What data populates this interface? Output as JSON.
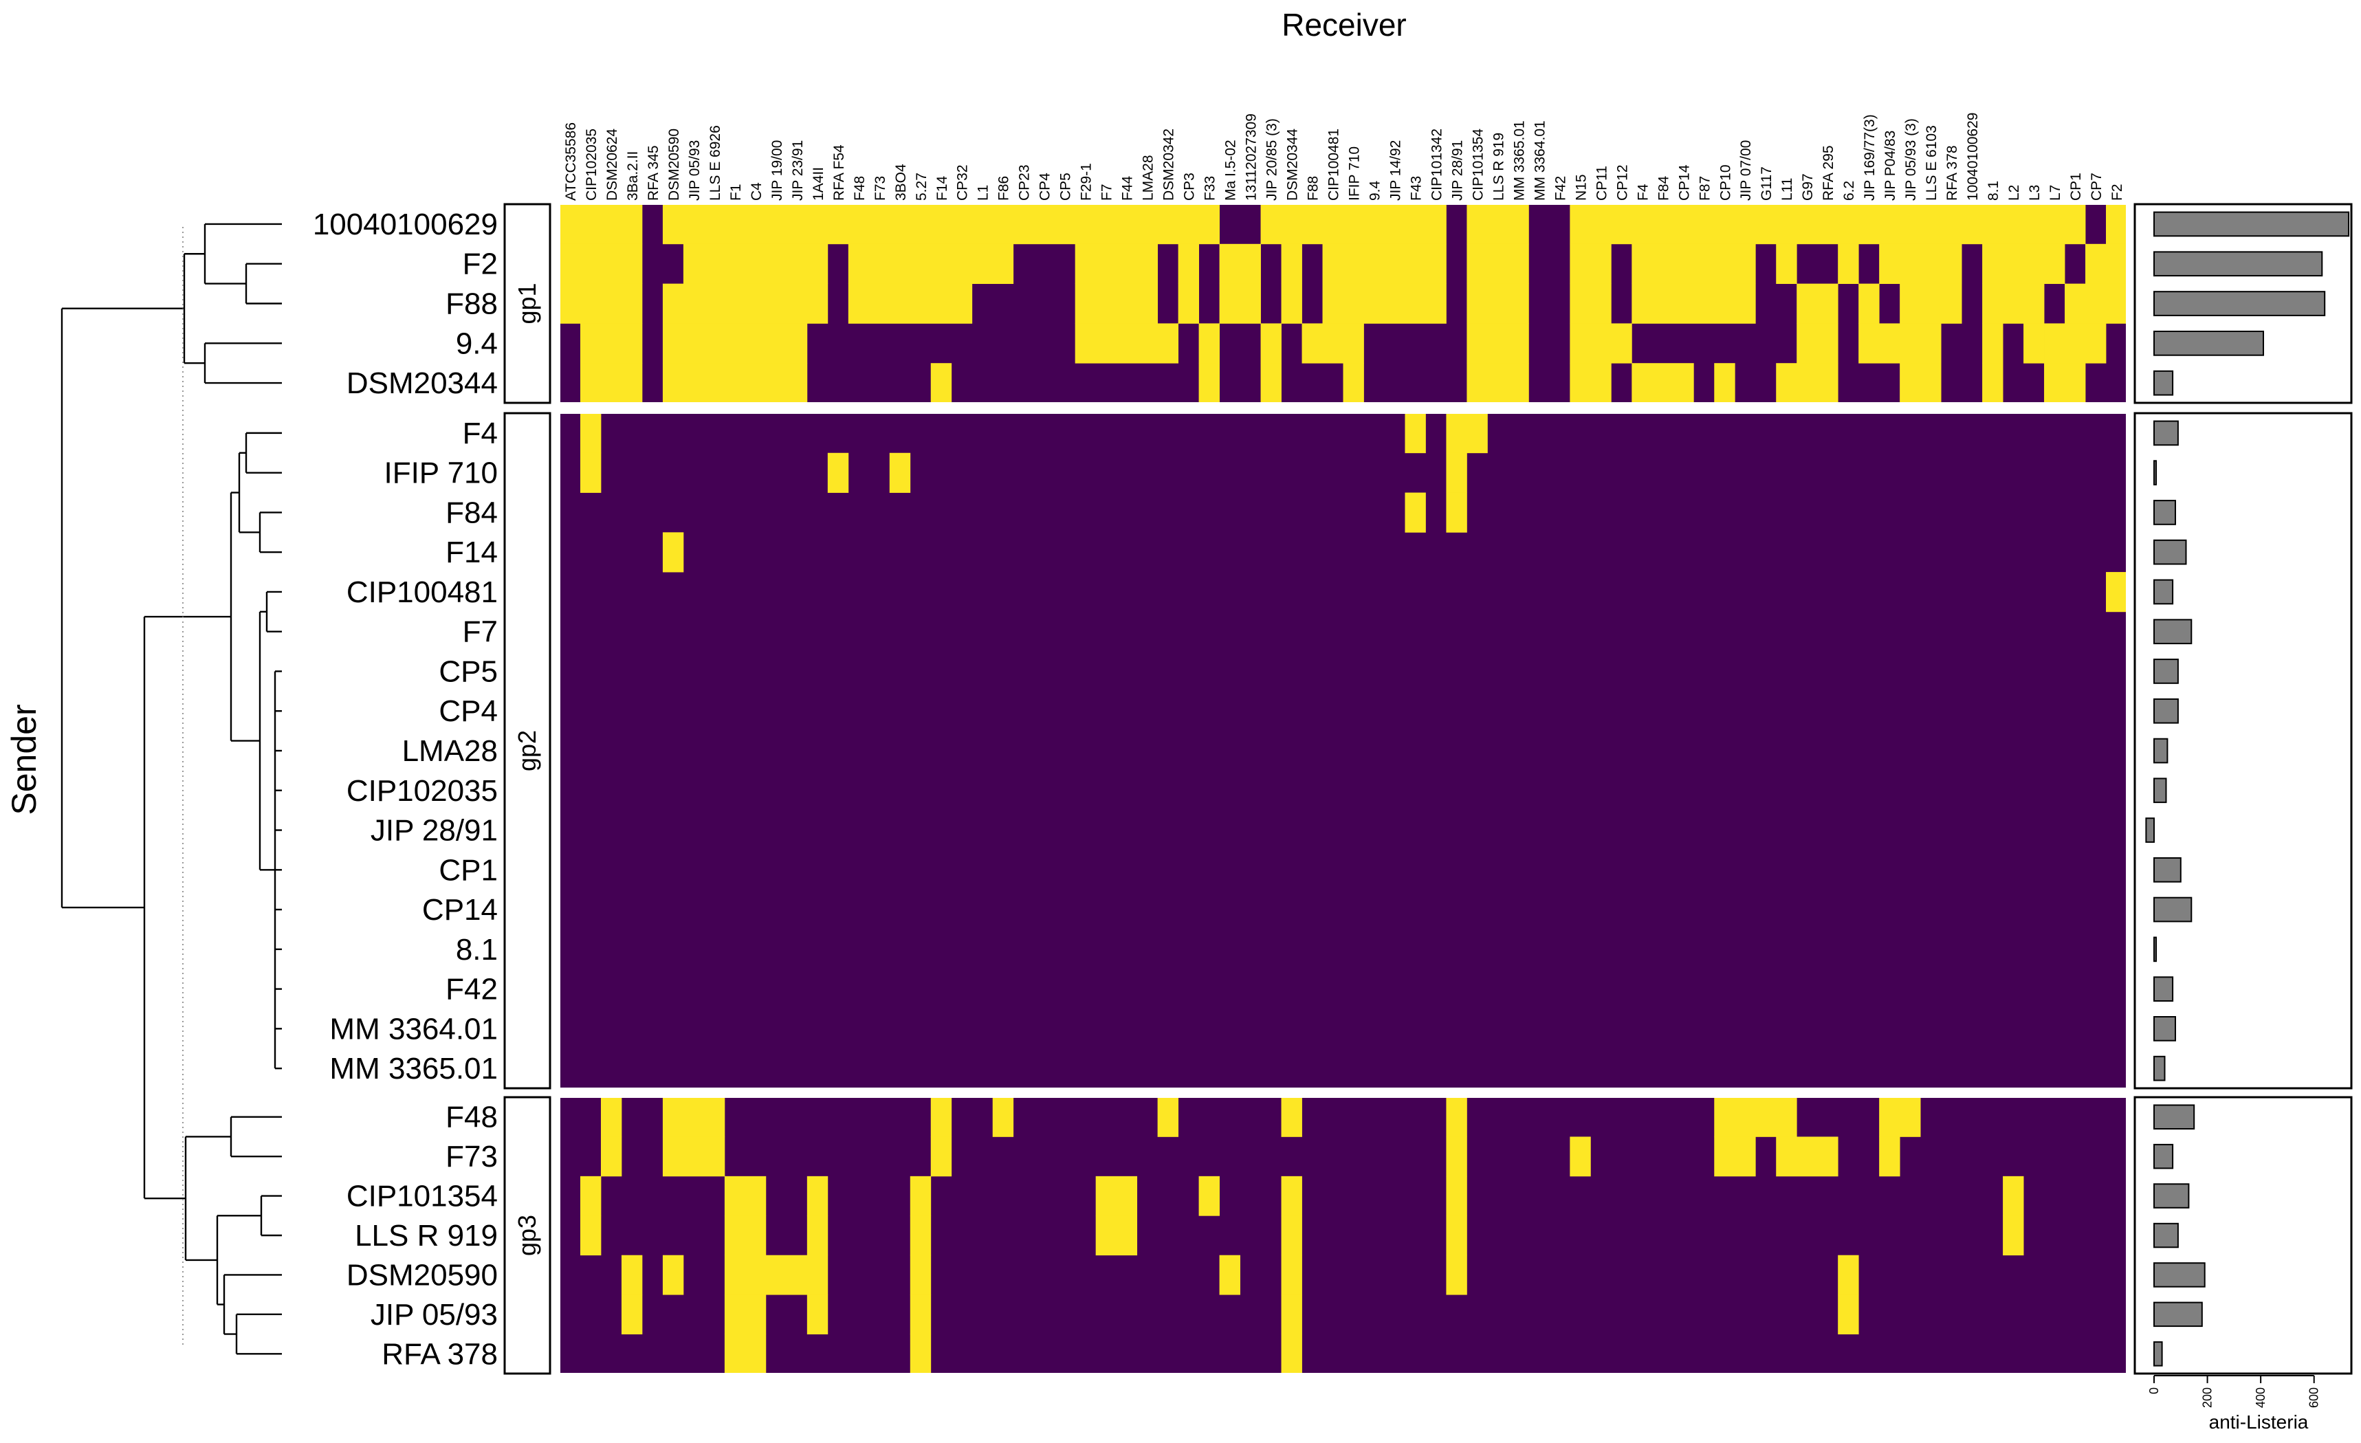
{
  "chart_data": {
    "type": "heatmap",
    "title": "Receiver",
    "xlabel": "Receiver",
    "ylabel": "Sender",
    "colors": {
      "positive": "#fde725",
      "negative": "#440154",
      "bar": "#808080"
    },
    "columns": [
      "ATCC35586",
      "CIP102035",
      "DSM20624",
      "3Ba.2.II",
      "RFA 345",
      "DSM20590",
      "JIP 05/93",
      "LLS E 6926",
      "F1",
      "C4",
      "JIP 19/00",
      "JIP 23/91",
      "1A4II",
      "RFA F54",
      "F48",
      "F73",
      "3BO4",
      "5.27",
      "F14",
      "CP32",
      "L1",
      "F86",
      "CP23",
      "CP4",
      "CP5",
      "F29-1",
      "F7",
      "F44",
      "LMA28",
      "DSM20342",
      "CP3",
      "F33",
      "Ma I.5-02",
      "13112027309",
      "JIP 20/85 (3)",
      "DSM20344",
      "F88",
      "CIP100481",
      "IFIP 710",
      "9.4",
      "JIP 14/92",
      "F43",
      "CIP101342",
      "JIP 28/91",
      "CIP101354",
      "LLS R 919",
      "MM 3365.01",
      "MM 3364.01",
      "F42",
      "N15",
      "CP11",
      "CP12",
      "F4",
      "F84",
      "CP14",
      "F87",
      "CP10",
      "JIP 07/00",
      "G117",
      "L11",
      "G97",
      "RFA 295",
      "6.2",
      "JIP 169/77(3)",
      "JIP P04/83",
      "JIP 05/93 (3)",
      "LLS E 6103",
      "RFA 378",
      "10040100629",
      "8.1",
      "L2",
      "L3",
      "L7",
      "CP1",
      "CP7",
      "F2"
    ],
    "groups": [
      {
        "label": "gp1",
        "rows": [
          {
            "name": "10040100629",
            "bar": 730,
            "pos": [
              [
                0,
                3
              ],
              [
                5,
                31
              ],
              [
                34,
                42
              ],
              [
                44,
                46
              ],
              [
                49,
                67
              ],
              [
                68,
                73
              ],
              [
                75,
                75
              ]
            ]
          },
          {
            "name": "F2",
            "bar": 630,
            "pos": [
              [
                0,
                3
              ],
              [
                6,
                12
              ],
              [
                14,
                21
              ],
              [
                25,
                28
              ],
              [
                30,
                30
              ],
              [
                32,
                33
              ],
              [
                35,
                35
              ],
              [
                37,
                42
              ],
              [
                44,
                46
              ],
              [
                49,
                50
              ],
              [
                52,
                57
              ],
              [
                59,
                59
              ],
              [
                62,
                62
              ],
              [
                64,
                67
              ],
              [
                69,
                72
              ],
              [
                74,
                75
              ]
            ]
          },
          {
            "name": "F88",
            "bar": 640,
            "pos": [
              [
                0,
                3
              ],
              [
                5,
                12
              ],
              [
                14,
                19
              ],
              [
                25,
                28
              ],
              [
                30,
                30
              ],
              [
                32,
                33
              ],
              [
                35,
                35
              ],
              [
                37,
                42
              ],
              [
                44,
                46
              ],
              [
                49,
                50
              ],
              [
                52,
                57
              ],
              [
                60,
                61
              ],
              [
                63,
                63
              ],
              [
                65,
                67
              ],
              [
                69,
                71
              ],
              [
                73,
                75
              ]
            ]
          },
          {
            "name": "9.4",
            "bar": 410,
            "pos": [
              [
                1,
                3
              ],
              [
                5,
                11
              ],
              [
                25,
                29
              ],
              [
                31,
                31
              ],
              [
                34,
                34
              ],
              [
                36,
                38
              ],
              [
                44,
                46
              ],
              [
                49,
                51
              ],
              [
                60,
                61
              ],
              [
                63,
                66
              ],
              [
                69,
                69
              ],
              [
                71,
                71
              ],
              [
                72,
                74
              ]
            ]
          },
          {
            "name": "DSM20344",
            "bar": 70,
            "pos": [
              [
                1,
                3
              ],
              [
                5,
                11
              ],
              [
                18,
                18
              ],
              [
                31,
                31
              ],
              [
                34,
                34
              ],
              [
                38,
                38
              ],
              [
                44,
                46
              ],
              [
                49,
                50
              ],
              [
                52,
                54
              ],
              [
                56,
                56
              ],
              [
                59,
                61
              ],
              [
                65,
                66
              ],
              [
                69,
                69
              ],
              [
                72,
                73
              ]
            ]
          }
        ]
      },
      {
        "label": "gp2",
        "rows": [
          {
            "name": "F4",
            "bar": 90,
            "pos": [
              [
                1,
                1
              ],
              [
                41,
                41
              ],
              [
                43,
                44
              ]
            ]
          },
          {
            "name": "IFIP 710",
            "bar": 5,
            "pos": [
              [
                1,
                1
              ],
              [
                13,
                13
              ],
              [
                16,
                16
              ],
              [
                43,
                43
              ]
            ]
          },
          {
            "name": "F84",
            "bar": 80,
            "pos": [
              [
                41,
                41
              ],
              [
                43,
                43
              ]
            ]
          },
          {
            "name": "F14",
            "bar": 120,
            "pos": [
              [
                5,
                5
              ]
            ]
          },
          {
            "name": "CIP100481",
            "bar": 70,
            "pos": [
              [
                75,
                75
              ]
            ]
          },
          {
            "name": "F7",
            "bar": 140,
            "pos": []
          },
          {
            "name": "CP5",
            "bar": 90,
            "pos": []
          },
          {
            "name": "CP4",
            "bar": 90,
            "pos": []
          },
          {
            "name": "LMA28",
            "bar": 50,
            "pos": []
          },
          {
            "name": "CIP102035",
            "bar": 45,
            "pos": []
          },
          {
            "name": "JIP 28/91",
            "bar": -30,
            "pos": []
          },
          {
            "name": "CP1",
            "bar": 100,
            "pos": []
          },
          {
            "name": "CP14",
            "bar": 140,
            "pos": []
          },
          {
            "name": "8.1",
            "bar": 5,
            "pos": []
          },
          {
            "name": "F42",
            "bar": 70,
            "pos": []
          },
          {
            "name": "MM 3364.01",
            "bar": 80,
            "pos": []
          },
          {
            "name": "MM 3365.01",
            "bar": 40,
            "pos": []
          }
        ]
      },
      {
        "label": "gp3",
        "rows": [
          {
            "name": "F48",
            "bar": 150,
            "pos": [
              [
                2,
                2
              ],
              [
                5,
                7
              ],
              [
                18,
                18
              ],
              [
                21,
                21
              ],
              [
                29,
                29
              ],
              [
                35,
                35
              ],
              [
                43,
                43
              ],
              [
                56,
                59
              ],
              [
                64,
                65
              ]
            ]
          },
          {
            "name": "F73",
            "bar": 70,
            "pos": [
              [
                2,
                2
              ],
              [
                5,
                7
              ],
              [
                18,
                18
              ],
              [
                43,
                43
              ],
              [
                49,
                49
              ],
              [
                56,
                57
              ],
              [
                59,
                61
              ],
              [
                64,
                64
              ]
            ]
          },
          {
            "name": "CIP101354",
            "bar": 130,
            "pos": [
              [
                1,
                1
              ],
              [
                8,
                9
              ],
              [
                12,
                12
              ],
              [
                17,
                17
              ],
              [
                26,
                27
              ],
              [
                31,
                31
              ],
              [
                35,
                35
              ],
              [
                43,
                43
              ],
              [
                70,
                70
              ]
            ]
          },
          {
            "name": "LLS R 919",
            "bar": 90,
            "pos": [
              [
                1,
                1
              ],
              [
                8,
                9
              ],
              [
                12,
                12
              ],
              [
                17,
                17
              ],
              [
                26,
                27
              ],
              [
                35,
                35
              ],
              [
                43,
                43
              ],
              [
                70,
                70
              ]
            ]
          },
          {
            "name": "DSM20590",
            "bar": 190,
            "pos": [
              [
                3,
                3
              ],
              [
                5,
                5
              ],
              [
                8,
                12
              ],
              [
                17,
                17
              ],
              [
                32,
                32
              ],
              [
                35,
                35
              ],
              [
                43,
                43
              ],
              [
                62,
                62
              ]
            ]
          },
          {
            "name": "JIP 05/93",
            "bar": 180,
            "pos": [
              [
                3,
                3
              ],
              [
                8,
                9
              ],
              [
                12,
                12
              ],
              [
                17,
                17
              ],
              [
                35,
                35
              ],
              [
                62,
                62
              ]
            ]
          },
          {
            "name": "RFA 378",
            "bar": 30,
            "pos": [
              [
                8,
                9
              ],
              [
                17,
                17
              ],
              [
                35,
                35
              ]
            ]
          }
        ]
      }
    ],
    "bar_axis": {
      "label": "anti-Listeria",
      "ticks": [
        0,
        200,
        400,
        600
      ],
      "range": [
        -50,
        740
      ]
    },
    "dendrogram": "hierarchical clustering of senders",
    "grid": false,
    "legend": "none"
  }
}
